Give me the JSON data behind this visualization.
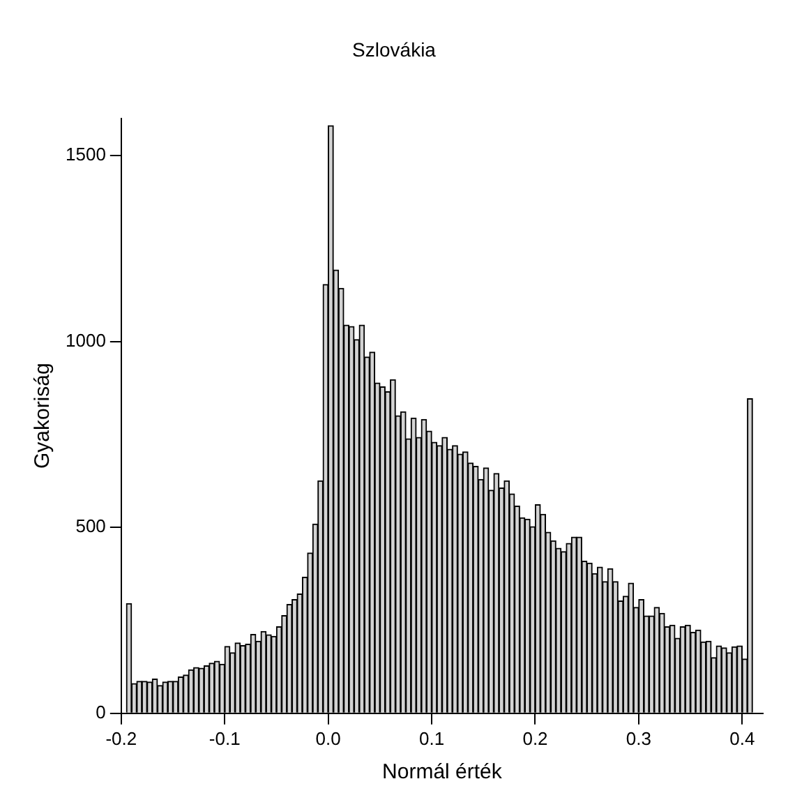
{
  "chart_data": {
    "type": "histogram",
    "title": "Szlovákia",
    "xlabel": "Normál érték",
    "ylabel": "Gyakoriság",
    "bins": [
      -0.195,
      -0.19,
      -0.185,
      -0.18,
      -0.175,
      -0.17,
      -0.165,
      -0.16,
      -0.155,
      -0.15,
      -0.145,
      -0.14,
      -0.135,
      -0.13,
      -0.125,
      -0.12,
      -0.115,
      -0.11,
      -0.105,
      -0.1,
      -0.095,
      -0.09,
      -0.085,
      -0.08,
      -0.075,
      -0.07,
      -0.065,
      -0.06,
      -0.055,
      -0.05,
      -0.045,
      -0.04,
      -0.035,
      -0.03,
      -0.025,
      -0.02,
      -0.015,
      -0.01,
      -0.005,
      0,
      0.005,
      0.01,
      0.015,
      0.02,
      0.025,
      0.03,
      0.035,
      0.04,
      0.045,
      0.05,
      0.055,
      0.06,
      0.065,
      0.07,
      0.075,
      0.08,
      0.085,
      0.09,
      0.095,
      0.1,
      0.105,
      0.11,
      0.115,
      0.12,
      0.125,
      0.13,
      0.135,
      0.14,
      0.145,
      0.15,
      0.155,
      0.16,
      0.165,
      0.17,
      0.175,
      0.18,
      0.185,
      0.19,
      0.195,
      0.2,
      0.205,
      0.21,
      0.215,
      0.22,
      0.225,
      0.23,
      0.235,
      0.24,
      0.245,
      0.25,
      0.255,
      0.26,
      0.265,
      0.27,
      0.275,
      0.28,
      0.285,
      0.29,
      0.295,
      0.3,
      0.305,
      0.31,
      0.315,
      0.32,
      0.325,
      0.33,
      0.335,
      0.34,
      0.345,
      0.35,
      0.355,
      0.36,
      0.365,
      0.37,
      0.375,
      0.38,
      0.385,
      0.39,
      0.395,
      0.4,
      0.405,
      0.41
    ],
    "values": [
      295,
      80,
      86,
      86,
      84,
      92,
      75,
      84,
      86,
      86,
      98,
      103,
      117,
      123,
      121,
      128,
      135,
      140,
      132,
      180,
      163,
      189,
      182,
      186,
      212,
      194,
      220,
      211,
      207,
      233,
      263,
      293,
      306,
      321,
      366,
      431,
      509,
      625,
      1153,
      1580,
      1192,
      1143,
      1044,
      1040,
      1005,
      1044,
      958,
      971,
      888,
      878,
      865,
      897,
      800,
      811,
      738,
      794,
      742,
      790,
      759,
      729,
      720,
      742,
      710,
      720,
      697,
      703,
      673,
      664,
      629,
      660,
      600,
      645,
      606,
      625,
      590,
      557,
      526,
      522,
      502,
      561,
      535,
      487,
      464,
      444,
      435,
      457,
      474,
      474,
      409,
      404,
      376,
      393,
      354,
      389,
      354,
      302,
      315,
      350,
      285,
      306,
      262,
      262,
      285,
      269,
      233,
      237,
      202,
      233,
      237,
      218,
      224,
      192,
      194,
      150,
      181,
      176,
      163,
      179,
      181,
      146,
      846
    ],
    "color": "#d3d3d3",
    "xlim": [
      -0.2,
      0.42
    ],
    "xticks": [
      {
        "value": -0.2,
        "label": "-0.2"
      },
      {
        "value": -0.1,
        "label": "-0.1"
      },
      {
        "value": 0,
        "label": "0.0"
      },
      {
        "value": 0.1,
        "label": "0.1"
      },
      {
        "value": 0.2,
        "label": "0.2"
      },
      {
        "value": 0.3,
        "label": "0.3"
      },
      {
        "value": 0.4,
        "label": "0.4"
      }
    ],
    "ylim": [
      0,
      1600
    ],
    "yticks": [
      0,
      500,
      1000,
      1500
    ],
    "grid": false,
    "legend": false
  }
}
